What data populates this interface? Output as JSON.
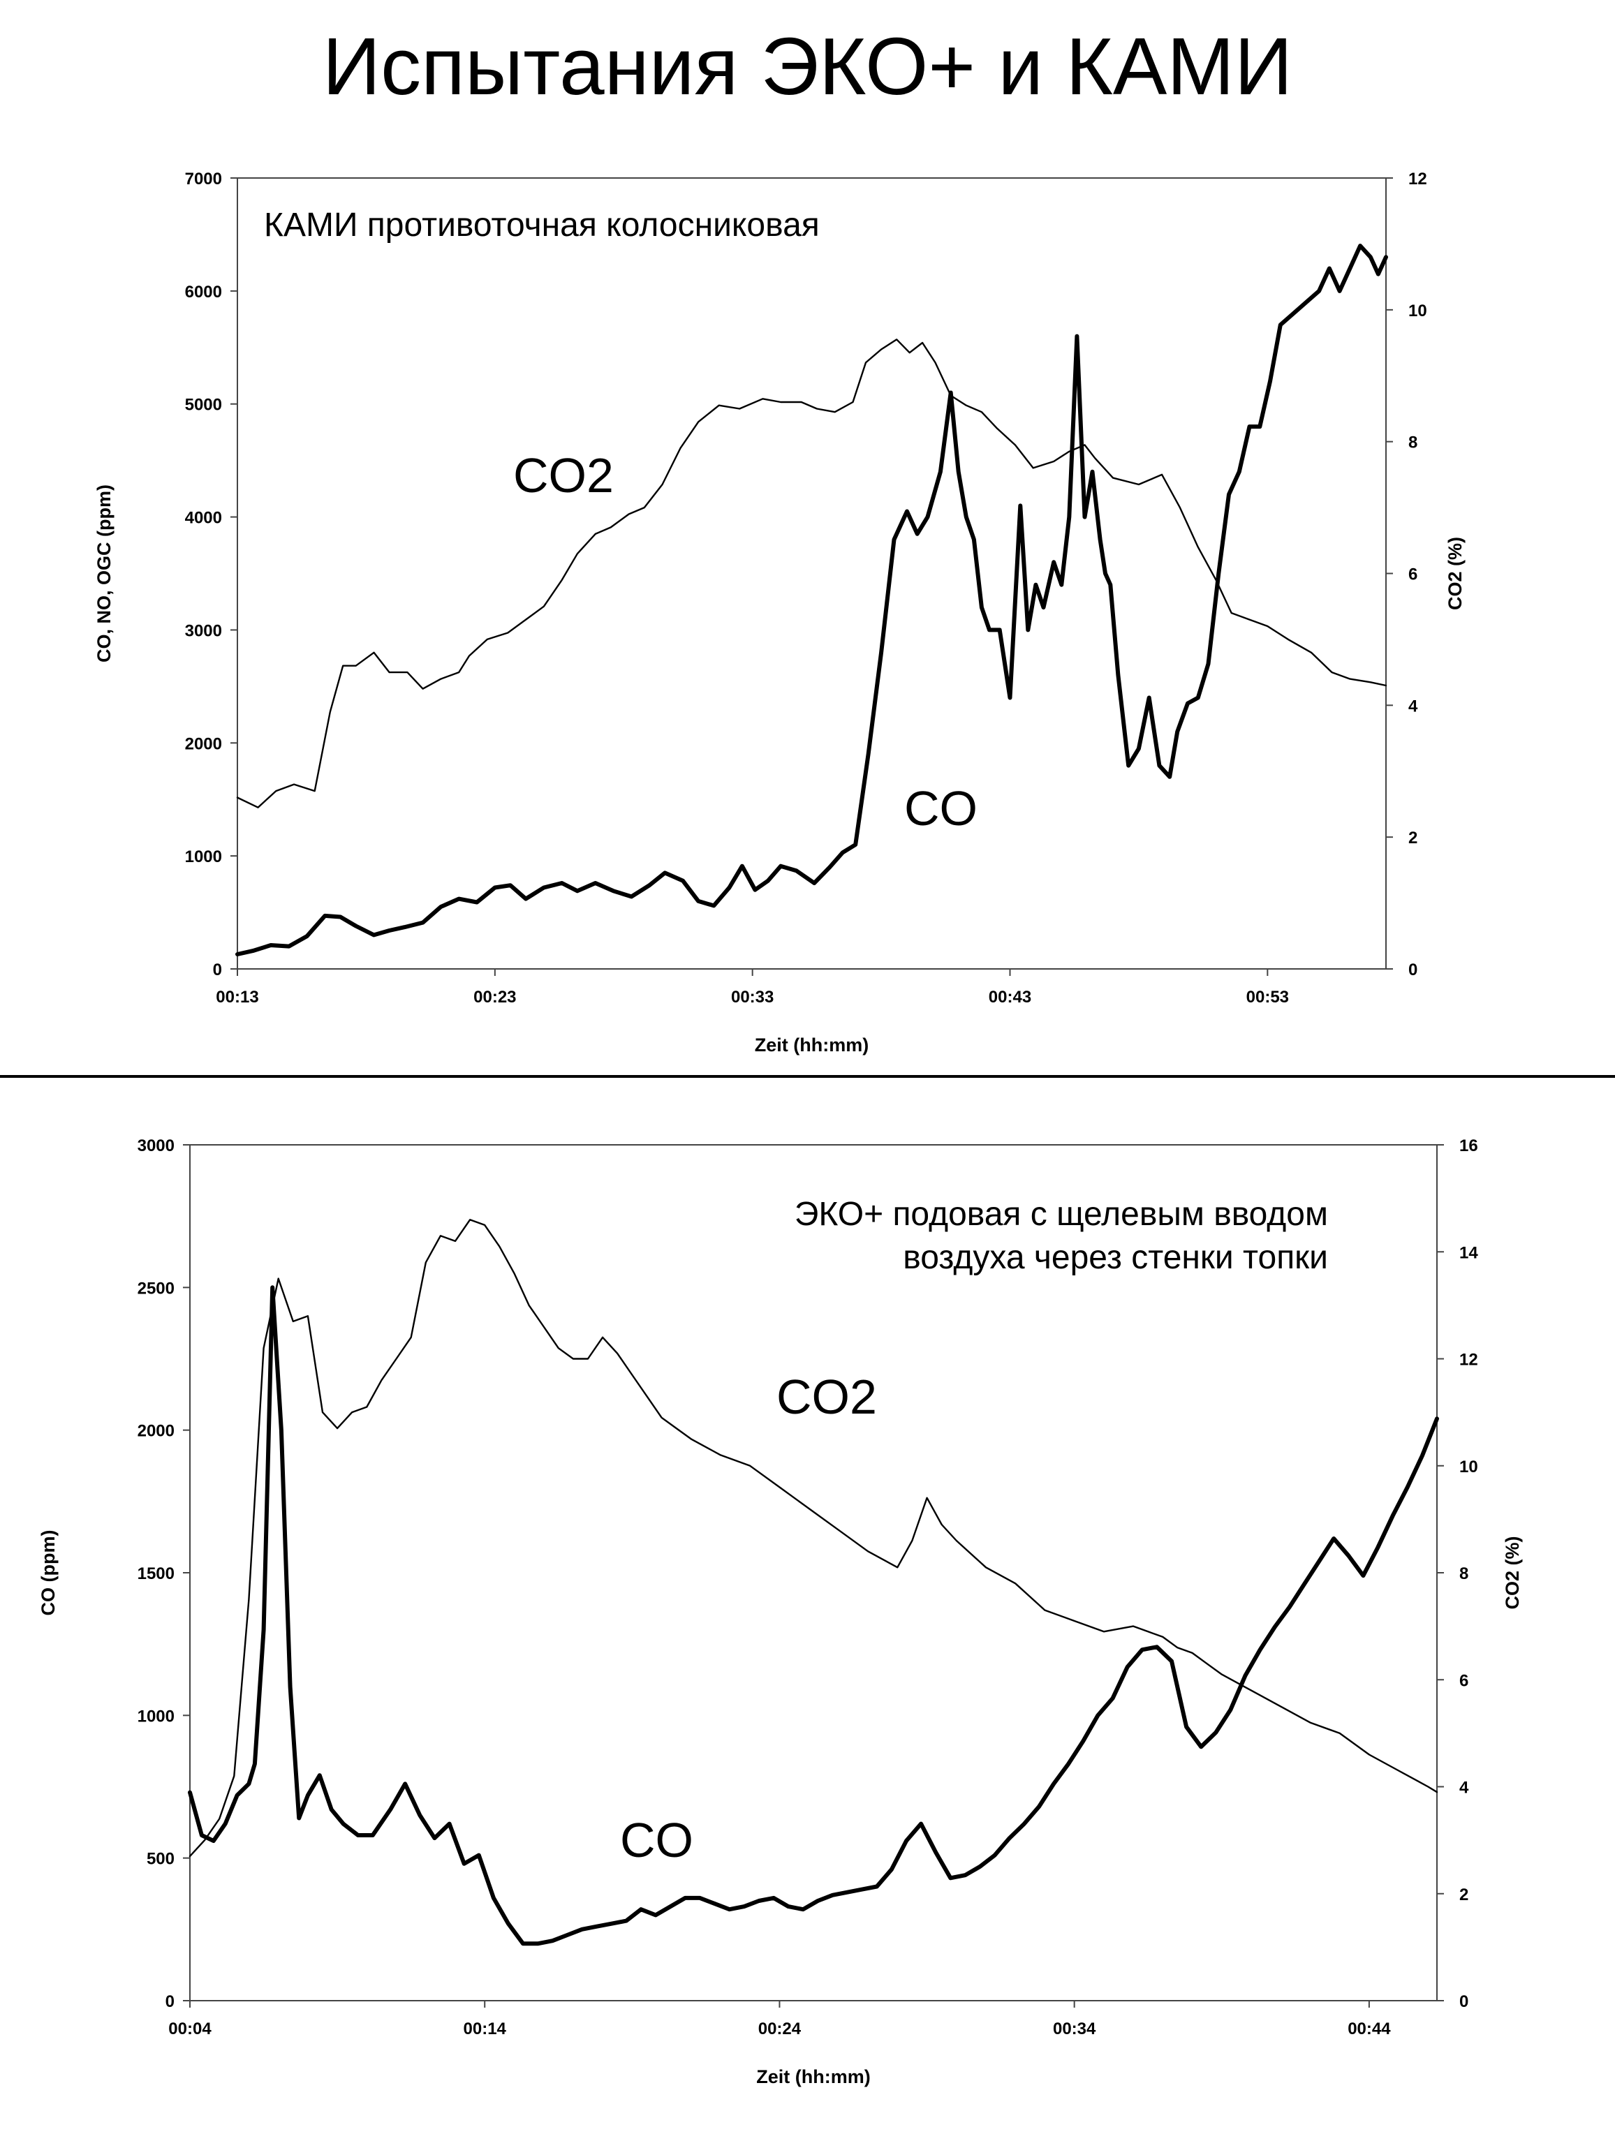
{
  "page": {
    "title": "Испытания ЭКО+ и КАМИ"
  },
  "chart_data": [
    {
      "type": "line",
      "annotation": [
        "КАМИ противоточная колосниковая"
      ],
      "xlabel": "Zeit (hh:mm)",
      "ylabel_left": "CO, NO, OGC (ppm)",
      "ylabel_right": "CO2 (%)",
      "xlim": [
        13,
        57.6
      ],
      "ylim_left": [
        0,
        7000
      ],
      "ylim_right": [
        0,
        12
      ],
      "x_ticks": [
        {
          "v": 13,
          "label": "00:13"
        },
        {
          "v": 23,
          "label": "00:23"
        },
        {
          "v": 33,
          "label": "00:33"
        },
        {
          "v": 43,
          "label": "00:43"
        },
        {
          "v": 53,
          "label": "00:53"
        }
      ],
      "y_ticks_left": [
        0,
        1000,
        2000,
        3000,
        4000,
        5000,
        6000,
        7000
      ],
      "y_ticks_right": [
        0,
        2,
        4,
        6,
        8,
        10,
        12
      ],
      "grid": false,
      "series": [
        {
          "name": "CO2",
          "axis": "right",
          "line": "thin",
          "x": [
            13.0,
            13.8,
            14.5,
            15.2,
            16.0,
            16.6,
            17.1,
            17.6,
            18.3,
            18.9,
            19.6,
            20.2,
            20.9,
            21.6,
            22.0,
            22.7,
            23.5,
            24.2,
            24.9,
            25.6,
            26.2,
            26.9,
            27.5,
            28.2,
            28.8,
            29.5,
            30.2,
            30.9,
            31.7,
            32.5,
            33.4,
            34.1,
            34.9,
            35.5,
            36.2,
            36.9,
            37.4,
            38.0,
            38.6,
            39.1,
            39.6,
            40.1,
            40.7,
            41.3,
            41.9,
            42.5,
            43.2,
            43.9,
            44.7,
            45.3,
            45.9,
            46.3,
            47.0,
            48.0,
            48.9,
            49.6,
            50.3,
            51.0,
            51.6,
            52.3,
            53.0,
            53.8,
            54.7,
            55.5,
            56.2,
            57.0,
            57.6
          ],
          "values": [
            2.6,
            2.45,
            2.7,
            2.8,
            2.7,
            3.9,
            4.6,
            4.6,
            4.8,
            4.5,
            4.5,
            4.25,
            4.4,
            4.5,
            4.75,
            5.0,
            5.1,
            5.3,
            5.5,
            5.9,
            6.3,
            6.6,
            6.7,
            6.9,
            7.0,
            7.35,
            7.9,
            8.3,
            8.55,
            8.5,
            8.65,
            8.6,
            8.6,
            8.5,
            8.45,
            8.6,
            9.2,
            9.4,
            9.55,
            9.35,
            9.5,
            9.2,
            8.7,
            8.55,
            8.45,
            8.2,
            7.95,
            7.6,
            7.7,
            7.85,
            7.95,
            7.75,
            7.45,
            7.35,
            7.5,
            7.0,
            6.4,
            5.9,
            5.4,
            5.3,
            5.2,
            5.0,
            4.8,
            4.5,
            4.4,
            4.35,
            4.3
          ]
        },
        {
          "name": "CO",
          "axis": "left",
          "line": "thick",
          "x": [
            13.0,
            13.6,
            14.3,
            15.0,
            15.7,
            16.4,
            17.0,
            17.6,
            18.3,
            18.9,
            19.5,
            20.2,
            20.9,
            21.6,
            22.3,
            23.0,
            23.6,
            24.2,
            24.9,
            25.6,
            26.2,
            26.9,
            27.6,
            28.3,
            29.0,
            29.6,
            30.3,
            30.9,
            31.5,
            32.1,
            32.6,
            33.1,
            33.6,
            34.1,
            34.7,
            35.4,
            36.0,
            36.5,
            37.0,
            37.5,
            38.0,
            38.5,
            39.0,
            39.4,
            39.8,
            40.3,
            40.7,
            41.0,
            41.3,
            41.6,
            41.9,
            42.2,
            42.6,
            43.0,
            43.4,
            43.7,
            44.0,
            44.3,
            44.7,
            45.0,
            45.3,
            45.6,
            45.9,
            46.2,
            46.5,
            46.7,
            46.9,
            47.2,
            47.6,
            48.0,
            48.4,
            48.8,
            49.2,
            49.5,
            49.9,
            50.3,
            50.7,
            51.1,
            51.5,
            51.9,
            52.3,
            52.7,
            53.1,
            53.5,
            54.0,
            54.5,
            55.0,
            55.4,
            55.8,
            56.2,
            56.6,
            57.0,
            57.3,
            57.6
          ],
          "values": [
            130,
            160,
            210,
            200,
            290,
            470,
            460,
            380,
            300,
            340,
            370,
            410,
            550,
            620,
            590,
            720,
            740,
            620,
            720,
            760,
            690,
            760,
            690,
            640,
            740,
            850,
            780,
            600,
            560,
            720,
            910,
            700,
            780,
            910,
            870,
            760,
            900,
            1030,
            1100,
            1900,
            2800,
            3800,
            4050,
            3850,
            4000,
            4400,
            5100,
            4400,
            4000,
            3800,
            3200,
            3000,
            3000,
            2400,
            4100,
            3000,
            3400,
            3200,
            3600,
            3400,
            4000,
            5600,
            4000,
            4400,
            3800,
            3500,
            3400,
            2600,
            1800,
            1950,
            2400,
            1800,
            1700,
            2100,
            2350,
            2400,
            2700,
            3500,
            4200,
            4400,
            4800,
            4800,
            5200,
            5700,
            5800,
            5900,
            6000,
            6200,
            6000,
            6200,
            6400,
            6300,
            6150,
            6300
          ]
        }
      ]
    },
    {
      "type": "line",
      "annotation": [
        "ЭКО+ подовая с щелевым вводом",
        "воздуха через стенки топки"
      ],
      "xlabel": "Zeit (hh:mm)",
      "ylabel_left": "CO (ppm)",
      "ylabel_right": "CO2 (%)",
      "xlim": [
        4,
        46.3
      ],
      "ylim_left": [
        0,
        3000
      ],
      "ylim_right": [
        0,
        16
      ],
      "x_ticks": [
        {
          "v": 4,
          "label": "00:04"
        },
        {
          "v": 14,
          "label": "00:14"
        },
        {
          "v": 24,
          "label": "00:24"
        },
        {
          "v": 34,
          "label": "00:34"
        },
        {
          "v": 44,
          "label": "00:44"
        }
      ],
      "y_ticks_left": [
        0,
        500,
        1000,
        1500,
        2000,
        2500,
        3000
      ],
      "y_ticks_right": [
        0,
        2,
        4,
        6,
        8,
        10,
        12,
        14,
        16
      ],
      "grid": false,
      "series": [
        {
          "name": "CO2",
          "axis": "right",
          "line": "thin",
          "x": [
            4.0,
            4.5,
            5.0,
            5.5,
            6.0,
            6.5,
            7.0,
            7.5,
            8.0,
            8.5,
            9.0,
            9.5,
            10.0,
            10.5,
            11.0,
            11.5,
            12.0,
            12.5,
            13.0,
            13.5,
            14.0,
            14.5,
            15.0,
            15.5,
            16.0,
            16.5,
            17.0,
            17.5,
            18.0,
            18.5,
            19.0,
            19.5,
            20.0,
            20.5,
            21.0,
            22.0,
            23.0,
            24.0,
            25.0,
            26.0,
            27.0,
            28.0,
            28.5,
            29.0,
            29.5,
            30.0,
            31.0,
            32.0,
            33.0,
            34.0,
            35.0,
            36.0,
            36.5,
            37.0,
            37.5,
            38.0,
            38.5,
            39.0,
            40.0,
            41.0,
            42.0,
            43.0,
            44.0,
            45.0,
            46.0,
            46.3
          ],
          "values": [
            2.7,
            3.0,
            3.4,
            4.2,
            7.5,
            12.2,
            13.5,
            12.7,
            12.8,
            11.0,
            10.7,
            11.0,
            11.1,
            11.6,
            12.0,
            12.4,
            13.8,
            14.3,
            14.2,
            14.6,
            14.5,
            14.1,
            13.6,
            13.0,
            12.6,
            12.2,
            12.0,
            12.0,
            12.4,
            12.1,
            11.7,
            11.3,
            10.9,
            10.7,
            10.5,
            10.2,
            10.0,
            9.6,
            9.2,
            8.8,
            8.4,
            8.1,
            8.6,
            9.4,
            8.9,
            8.6,
            8.1,
            7.8,
            7.3,
            7.1,
            6.9,
            7.0,
            6.9,
            6.8,
            6.6,
            6.5,
            6.3,
            6.1,
            5.8,
            5.5,
            5.2,
            5.0,
            4.6,
            4.3,
            4.0,
            3.9
          ]
        },
        {
          "name": "CO",
          "axis": "left",
          "line": "thick",
          "x": [
            4.0,
            4.4,
            4.8,
            5.2,
            5.6,
            6.0,
            6.2,
            6.5,
            6.8,
            7.1,
            7.4,
            7.7,
            8.0,
            8.4,
            8.8,
            9.2,
            9.7,
            10.2,
            10.8,
            11.3,
            11.8,
            12.3,
            12.8,
            13.3,
            13.8,
            14.3,
            14.8,
            15.3,
            15.8,
            16.3,
            16.8,
            17.3,
            17.8,
            18.3,
            18.8,
            19.3,
            19.8,
            20.3,
            20.8,
            21.3,
            21.8,
            22.3,
            22.8,
            23.3,
            23.8,
            24.3,
            24.8,
            25.3,
            25.8,
            26.3,
            26.8,
            27.3,
            27.8,
            28.3,
            28.8,
            29.3,
            29.8,
            30.3,
            30.8,
            31.3,
            31.8,
            32.3,
            32.8,
            33.3,
            33.8,
            34.3,
            34.8,
            35.3,
            35.8,
            36.3,
            36.8,
            37.3,
            37.8,
            38.3,
            38.8,
            39.3,
            39.8,
            40.3,
            40.8,
            41.3,
            41.8,
            42.3,
            42.8,
            43.3,
            43.8,
            44.3,
            44.8,
            45.3,
            45.8,
            46.3
          ],
          "values": [
            730,
            580,
            560,
            620,
            720,
            760,
            830,
            1300,
            2500,
            2000,
            1100,
            640,
            720,
            790,
            670,
            620,
            580,
            580,
            670,
            760,
            650,
            570,
            620,
            480,
            510,
            360,
            270,
            200,
            200,
            210,
            230,
            250,
            260,
            270,
            280,
            320,
            300,
            330,
            360,
            360,
            340,
            320,
            330,
            350,
            360,
            330,
            320,
            350,
            370,
            380,
            390,
            400,
            460,
            560,
            620,
            520,
            430,
            440,
            470,
            510,
            570,
            620,
            680,
            760,
            830,
            910,
            1000,
            1060,
            1170,
            1230,
            1240,
            1190,
            960,
            890,
            940,
            1020,
            1140,
            1230,
            1310,
            1380,
            1460,
            1540,
            1620,
            1560,
            1490,
            1590,
            1700,
            1800,
            1910,
            2040
          ]
        }
      ]
    }
  ]
}
